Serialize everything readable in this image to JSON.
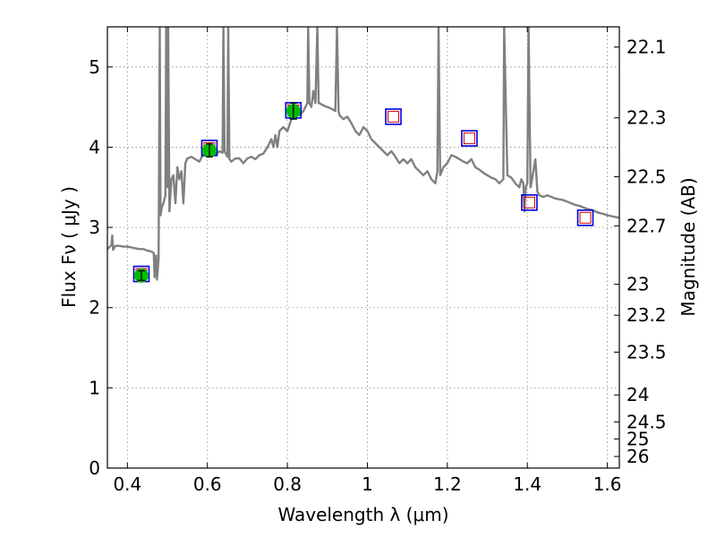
{
  "chart_data": {
    "type": "scatter",
    "title": "",
    "xlabel": "Wavelength  λ (μm)",
    "ylabel": "Flux  Fν  ( μJy )",
    "y2label": "Magnitude (AB)",
    "xlim": [
      0.35,
      1.63
    ],
    "ylim": [
      0,
      5.5
    ],
    "grid": true,
    "x_ticks": [
      0.4,
      0.6,
      0.8,
      1.0,
      1.2,
      1.4,
      1.6
    ],
    "x_tick_labels": [
      "0.4",
      "0.6",
      "0.8",
      "1",
      "1.2",
      "1.4",
      "1.6"
    ],
    "y_ticks": [
      0,
      1,
      2,
      3,
      4,
      5
    ],
    "y_tick_labels": [
      "0",
      "1",
      "2",
      "3",
      "4",
      "5"
    ],
    "y2_ticks": [
      {
        "label": "22.1",
        "mag": 22.1
      },
      {
        "label": "22.3",
        "mag": 22.3
      },
      {
        "label": "22.5",
        "mag": 22.5
      },
      {
        "label": "22.7",
        "mag": 22.7
      },
      {
        "label": "23",
        "mag": 23.0
      },
      {
        "label": "23.2",
        "mag": 23.2
      },
      {
        "label": "23.5",
        "mag": 23.5
      },
      {
        "label": "24",
        "mag": 24.0
      },
      {
        "label": "24.5",
        "mag": 24.5
      },
      {
        "label": "25",
        "mag": 25.0
      },
      {
        "label": "26",
        "mag": 26.0
      }
    ],
    "colors": {
      "sed": "#808080",
      "observed": "#00bb00",
      "model_box": "#0000dd",
      "model_inner": "#cc0000",
      "grid": "#888888"
    },
    "model_photometry": [
      {
        "x": 0.435,
        "y": 2.42
      },
      {
        "x": 0.605,
        "y": 3.99
      },
      {
        "x": 0.815,
        "y": 4.46
      },
      {
        "x": 1.065,
        "y": 4.38
      },
      {
        "x": 1.255,
        "y": 4.11
      },
      {
        "x": 1.405,
        "y": 3.31
      },
      {
        "x": 1.545,
        "y": 3.12
      }
    ],
    "observed_photometry": [
      {
        "x": 0.435,
        "y": 2.4,
        "err": 0.06
      },
      {
        "x": 0.605,
        "y": 3.96,
        "err": 0.08
      },
      {
        "x": 0.815,
        "y": 4.45,
        "err": 0.1
      }
    ],
    "sed_spectrum": [
      [
        0.35,
        2.73
      ],
      [
        0.36,
        2.78
      ],
      [
        0.362,
        2.9
      ],
      [
        0.364,
        2.72
      ],
      [
        0.37,
        2.77
      ],
      [
        0.38,
        2.77
      ],
      [
        0.39,
        2.76
      ],
      [
        0.4,
        2.76
      ],
      [
        0.41,
        2.75
      ],
      [
        0.42,
        2.74
      ],
      [
        0.43,
        2.73
      ],
      [
        0.44,
        2.73
      ],
      [
        0.45,
        2.71
      ],
      [
        0.46,
        2.7
      ],
      [
        0.466,
        2.68
      ],
      [
        0.468,
        2.38
      ],
      [
        0.472,
        2.65
      ],
      [
        0.474,
        2.35
      ],
      [
        0.478,
        2.6
      ],
      [
        0.481,
        5.5
      ],
      [
        0.483,
        3.15
      ],
      [
        0.486,
        3.25
      ],
      [
        0.49,
        3.3
      ],
      [
        0.495,
        3.4
      ],
      [
        0.497,
        5.5
      ],
      [
        0.5,
        3.5
      ],
      [
        0.502,
        5.5
      ],
      [
        0.505,
        3.2
      ],
      [
        0.51,
        3.6
      ],
      [
        0.515,
        3.65
      ],
      [
        0.52,
        3.3
      ],
      [
        0.525,
        3.75
      ],
      [
        0.53,
        3.6
      ],
      [
        0.535,
        3.7
      ],
      [
        0.54,
        3.3
      ],
      [
        0.545,
        3.8
      ],
      [
        0.55,
        3.86
      ],
      [
        0.56,
        3.88
      ],
      [
        0.57,
        3.85
      ],
      [
        0.58,
        3.82
      ],
      [
        0.59,
        3.92
      ],
      [
        0.6,
        3.95
      ],
      [
        0.61,
        3.92
      ],
      [
        0.62,
        3.9
      ],
      [
        0.63,
        3.95
      ],
      [
        0.638,
        3.93
      ],
      [
        0.64,
        5.5
      ],
      [
        0.643,
        3.95
      ],
      [
        0.65,
        3.88
      ],
      [
        0.652,
        5.5
      ],
      [
        0.655,
        3.85
      ],
      [
        0.66,
        3.82
      ],
      [
        0.67,
        3.86
      ],
      [
        0.68,
        3.86
      ],
      [
        0.69,
        3.8
      ],
      [
        0.7,
        3.86
      ],
      [
        0.71,
        3.88
      ],
      [
        0.72,
        3.85
      ],
      [
        0.73,
        3.9
      ],
      [
        0.74,
        3.92
      ],
      [
        0.75,
        4.0
      ],
      [
        0.76,
        4.1
      ],
      [
        0.765,
        4.0
      ],
      [
        0.77,
        4.15
      ],
      [
        0.775,
        4.0
      ],
      [
        0.78,
        4.2
      ],
      [
        0.79,
        4.25
      ],
      [
        0.8,
        4.2
      ],
      [
        0.81,
        4.35
      ],
      [
        0.82,
        4.45
      ],
      [
        0.83,
        4.4
      ],
      [
        0.84,
        4.45
      ],
      [
        0.85,
        4.55
      ],
      [
        0.852,
        5.5
      ],
      [
        0.855,
        4.55
      ],
      [
        0.86,
        4.5
      ],
      [
        0.865,
        4.7
      ],
      [
        0.87,
        4.55
      ],
      [
        0.875,
        5.5
      ],
      [
        0.878,
        4.55
      ],
      [
        0.88,
        4.55
      ],
      [
        0.89,
        4.52
      ],
      [
        0.9,
        4.5
      ],
      [
        0.91,
        4.48
      ],
      [
        0.92,
        4.45
      ],
      [
        0.924,
        5.5
      ],
      [
        0.928,
        4.45
      ],
      [
        0.93,
        4.4
      ],
      [
        0.94,
        4.35
      ],
      [
        0.95,
        4.38
      ],
      [
        0.96,
        4.3
      ],
      [
        0.97,
        4.2
      ],
      [
        0.98,
        4.15
      ],
      [
        0.99,
        4.25
      ],
      [
        1.0,
        4.2
      ],
      [
        1.01,
        4.1
      ],
      [
        1.02,
        4.05
      ],
      [
        1.03,
        4.0
      ],
      [
        1.04,
        3.95
      ],
      [
        1.05,
        3.9
      ],
      [
        1.06,
        3.95
      ],
      [
        1.07,
        3.88
      ],
      [
        1.08,
        3.8
      ],
      [
        1.09,
        3.85
      ],
      [
        1.1,
        3.8
      ],
      [
        1.11,
        3.85
      ],
      [
        1.12,
        3.75
      ],
      [
        1.13,
        3.7
      ],
      [
        1.14,
        3.65
      ],
      [
        1.15,
        3.7
      ],
      [
        1.16,
        3.6
      ],
      [
        1.17,
        3.55
      ],
      [
        1.175,
        3.7
      ],
      [
        1.178,
        5.5
      ],
      [
        1.182,
        3.65
      ],
      [
        1.19,
        3.75
      ],
      [
        1.2,
        3.8
      ],
      [
        1.21,
        3.9
      ],
      [
        1.22,
        3.88
      ],
      [
        1.23,
        3.85
      ],
      [
        1.24,
        3.82
      ],
      [
        1.25,
        3.8
      ],
      [
        1.26,
        3.85
      ],
      [
        1.27,
        3.75
      ],
      [
        1.28,
        3.72
      ],
      [
        1.29,
        3.68
      ],
      [
        1.3,
        3.65
      ],
      [
        1.31,
        3.62
      ],
      [
        1.32,
        3.6
      ],
      [
        1.33,
        3.55
      ],
      [
        1.34,
        3.6
      ],
      [
        1.342,
        5.5
      ],
      [
        1.35,
        3.65
      ],
      [
        1.36,
        3.62
      ],
      [
        1.37,
        3.55
      ],
      [
        1.38,
        3.5
      ],
      [
        1.385,
        3.6
      ],
      [
        1.39,
        3.55
      ],
      [
        1.393,
        3.2
      ],
      [
        1.396,
        3.5
      ],
      [
        1.4,
        3.55
      ],
      [
        1.403,
        5.5
      ],
      [
        1.408,
        3.5
      ],
      [
        1.41,
        3.55
      ],
      [
        1.42,
        3.85
      ],
      [
        1.425,
        3.45
      ],
      [
        1.43,
        3.4
      ],
      [
        1.44,
        3.38
      ],
      [
        1.45,
        3.4
      ],
      [
        1.46,
        3.38
      ],
      [
        1.47,
        3.36
      ],
      [
        1.48,
        3.35
      ],
      [
        1.49,
        3.34
      ],
      [
        1.5,
        3.32
      ],
      [
        1.51,
        3.3
      ],
      [
        1.52,
        3.28
      ],
      [
        1.53,
        3.27
      ],
      [
        1.54,
        3.25
      ],
      [
        1.55,
        3.23
      ],
      [
        1.56,
        3.22
      ],
      [
        1.57,
        3.2
      ],
      [
        1.58,
        3.18
      ],
      [
        1.59,
        3.17
      ],
      [
        1.6,
        3.15
      ],
      [
        1.61,
        3.14
      ],
      [
        1.62,
        3.13
      ],
      [
        1.63,
        3.12
      ]
    ]
  }
}
